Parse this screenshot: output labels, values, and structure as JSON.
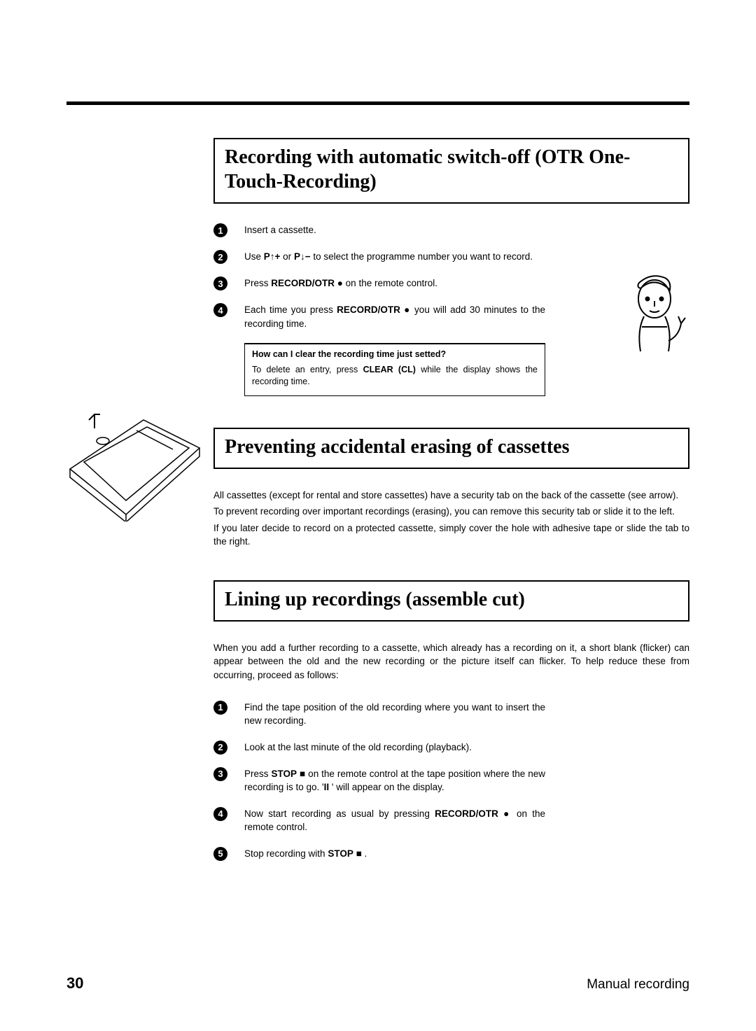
{
  "page": {
    "number": "30",
    "footer": "Manual recording"
  },
  "section1": {
    "title": "Recording with automatic switch-off (OTR One-Touch-Recording)",
    "steps": [
      {
        "parts": [
          "Insert a cassette."
        ]
      },
      {
        "parts": [
          "Use ",
          "P",
          "↑",
          "+",
          " or ",
          "P",
          "↓",
          "−",
          " to select the programme number you want to record."
        ]
      },
      {
        "parts": [
          "Press ",
          "RECORD/OTR",
          " ●",
          " on the remote control."
        ]
      },
      {
        "parts": [
          "Each time you press ",
          "RECORD/OTR",
          " ●",
          " you will add 30 minutes to the recording time."
        ]
      }
    ],
    "tip": {
      "q": "How can I clear the recording time just setted?",
      "a_parts": [
        "To delete an entry, press ",
        "CLEAR (CL)",
        " while the display shows the recording time."
      ]
    }
  },
  "section2": {
    "title": "Preventing accidental erasing of cassettes",
    "paras": [
      "All cassettes (except for rental and store cassettes) have a security tab on the back of the cassette (see arrow).",
      "To prevent recording over important recordings (erasing), you can remove this security tab or slide it to the left.",
      "If you later decide to record on a protected cassette, simply cover the hole with adhesive tape or slide the tab to the right."
    ]
  },
  "section3": {
    "title": "Lining up recordings (assemble cut)",
    "intro": "When you add a further recording to a cassette, which already has a recording on it, a short blank (flicker) can appear between the old and the new recording or the picture itself can flicker. To help reduce these from occurring, proceed as follows:",
    "steps": [
      {
        "parts": [
          "Find the tape position of the old recording where you want to insert the new recording."
        ]
      },
      {
        "parts": [
          "Look at the last minute of the old recording (playback)."
        ]
      },
      {
        "parts": [
          "Press ",
          "STOP",
          " ■",
          " on the remote control at the tape position where the new recording is to go. '",
          "II",
          " ' will appear on the display."
        ]
      },
      {
        "parts": [
          "Now start recording as usual by pressing ",
          "RECORD/OTR",
          " ●",
          " on the remote control."
        ]
      },
      {
        "parts": [
          "Stop recording with ",
          "STOP",
          " ■",
          " ."
        ]
      }
    ]
  }
}
